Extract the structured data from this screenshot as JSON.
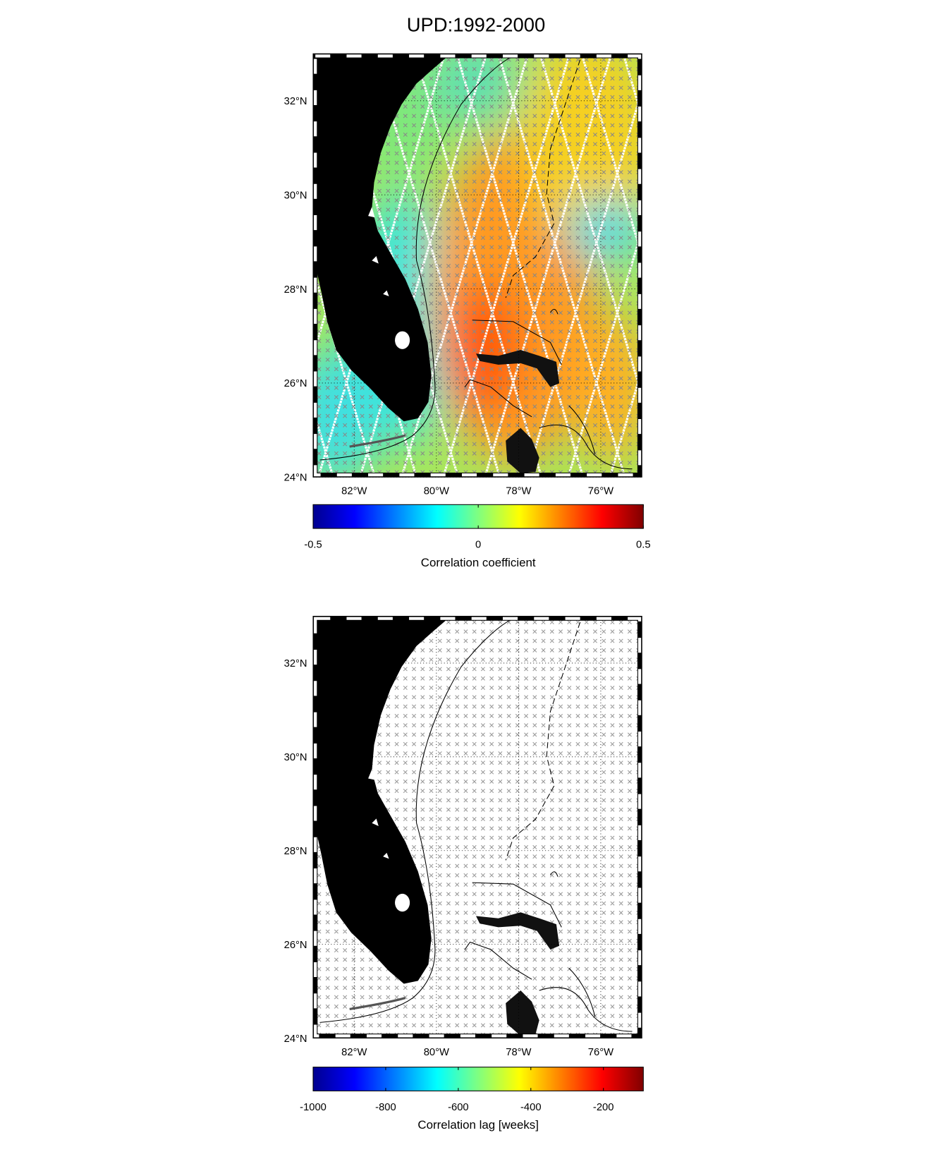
{
  "title": "UPD:1992-2000",
  "panels": [
    {
      "xlim": [
        -83,
        -75
      ],
      "ylim": [
        24,
        33
      ],
      "xticks": [
        {
          "value": -82,
          "label": "82°W"
        },
        {
          "value": -80,
          "label": "80°W"
        },
        {
          "value": -78,
          "label": "78°W"
        },
        {
          "value": -76,
          "label": "76°W"
        }
      ],
      "yticks": [
        {
          "value": 24,
          "label": "24°N"
        },
        {
          "value": 26,
          "label": "26°N"
        },
        {
          "value": 28,
          "label": "28°N"
        },
        {
          "value": 30,
          "label": "30°N"
        },
        {
          "value": 32,
          "label": "32°N"
        }
      ],
      "colorbar": {
        "colormap": "jet",
        "lim": [
          -0.5,
          0.5
        ],
        "ticks": [
          -0.5,
          0,
          0.5
        ],
        "label": "Correlation coefficient"
      }
    },
    {
      "xlim": [
        -83,
        -75
      ],
      "ylim": [
        24,
        33
      ],
      "xticks": [
        {
          "value": -82,
          "label": "82°W"
        },
        {
          "value": -80,
          "label": "80°W"
        },
        {
          "value": -78,
          "label": "78°W"
        },
        {
          "value": -76,
          "label": "76°W"
        }
      ],
      "yticks": [
        {
          "value": 24,
          "label": "24°N"
        },
        {
          "value": 26,
          "label": "26°N"
        },
        {
          "value": 28,
          "label": "28°N"
        },
        {
          "value": 30,
          "label": "30°N"
        },
        {
          "value": 32,
          "label": "32°N"
        }
      ],
      "colorbar": {
        "colormap": "jet",
        "lim": [
          -1000,
          -90
        ],
        "ticks": [
          -1000,
          -800,
          -600,
          -400,
          -200
        ],
        "label": "Correlation lag [weeks]"
      }
    }
  ]
}
